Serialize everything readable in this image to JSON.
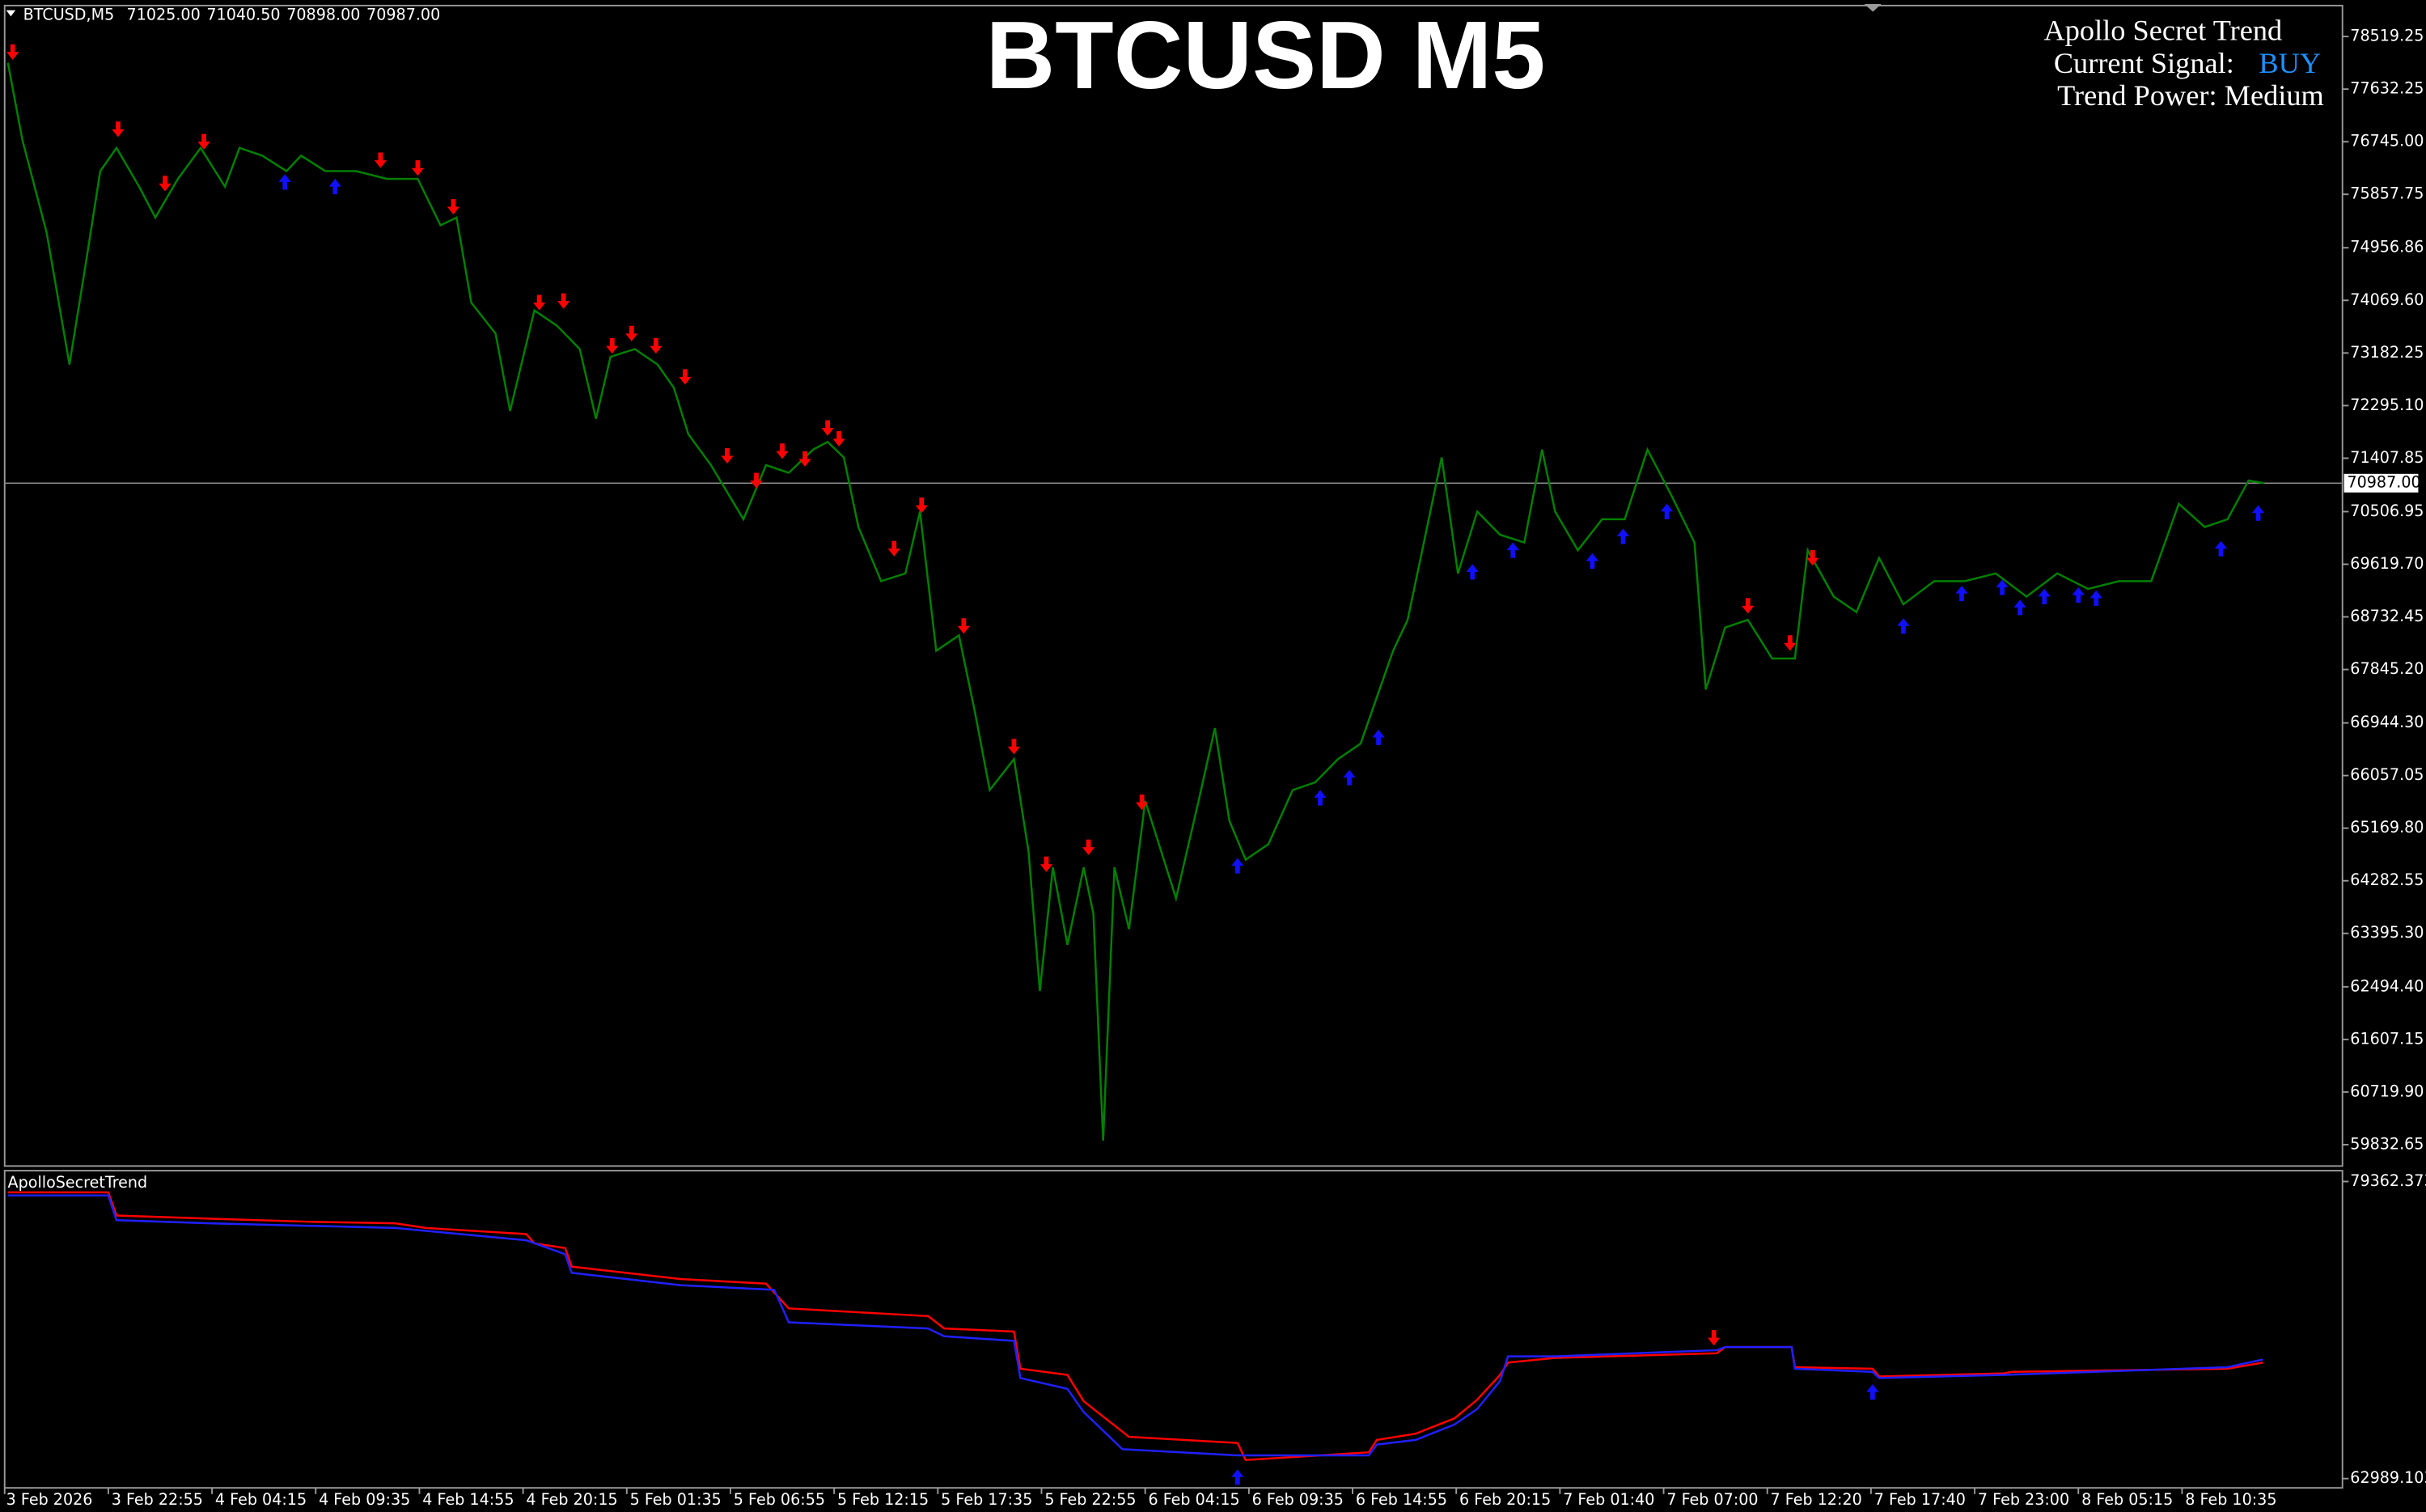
{
  "header": {
    "symbol": "BTCUSD,M5",
    "ohlc": [
      "71025.00",
      "71040.50",
      "70898.00",
      "70987.00"
    ]
  },
  "info": {
    "name": "Apollo Secret Trend",
    "signal_label": "Current Signal:",
    "signal": "BUY",
    "signal_color": "#1e90ff",
    "power": "Trend Power: Medium"
  },
  "chart_data": [
    {
      "type": "line",
      "title": "BTCUSD M5",
      "xlim": [
        0,
        1443
      ],
      "xticks": [
        {
          "value": 0,
          "label": "3 Feb 2026"
        },
        {
          "value": 64,
          "label": "3 Feb 22:55"
        },
        {
          "value": 128,
          "label": "4 Feb 04:15"
        },
        {
          "value": 192,
          "label": "4 Feb 09:35"
        },
        {
          "value": 256,
          "label": "4 Feb 14:55"
        },
        {
          "value": 320,
          "label": "4 Feb 20:15"
        },
        {
          "value": 384,
          "label": "5 Feb 01:35"
        },
        {
          "value": 448,
          "label": "5 Feb 06:55"
        },
        {
          "value": 512,
          "label": "5 Feb 12:15"
        },
        {
          "value": 576,
          "label": "5 Feb 17:35"
        },
        {
          "value": 640,
          "label": "5 Feb 22:55"
        },
        {
          "value": 704,
          "label": "6 Feb 04:15"
        },
        {
          "value": 768,
          "label": "6 Feb 09:35"
        },
        {
          "value": 832,
          "label": "6 Feb 14:55"
        },
        {
          "value": 896,
          "label": "6 Feb 20:15"
        },
        {
          "value": 960,
          "label": "7 Feb 01:40"
        },
        {
          "value": 1024,
          "label": "7 Feb 07:00"
        },
        {
          "value": 1088,
          "label": "7 Feb 12:20"
        },
        {
          "value": 1152,
          "label": "7 Feb 17:40"
        },
        {
          "value": 1216,
          "label": "7 Feb 23:00"
        },
        {
          "value": 1280,
          "label": "8 Feb 05:15"
        },
        {
          "value": 1344,
          "label": "8 Feb 10:35"
        }
      ],
      "ylim": [
        59472,
        79041
      ],
      "yticks": [
        78519.25,
        77632.25,
        {
          "value": 76745,
          "label": "76745.00"
        },
        75857.75,
        74956.86,
        {
          "value": 74069.6,
          "label": "74069.60"
        },
        73182.25,
        {
          "value": 72295.1,
          "label": "72295.10"
        },
        71407.85,
        70506.95,
        {
          "value": 69619.7,
          "label": "69619.70"
        },
        68732.45,
        {
          "value": 67845.2,
          "label": "67845.20"
        },
        {
          "value": 66944.3,
          "label": "66944.30"
        },
        66057.05,
        {
          "value": 65169.8,
          "label": "65169.80"
        },
        64282.55,
        {
          "value": 63395.3,
          "label": "63395.30"
        },
        {
          "value": 62494.4,
          "label": "62494.40"
        },
        61607.15,
        {
          "value": 60719.9,
          "label": "60719.90"
        },
        59832.65
      ],
      "current_price": {
        "value": 70987,
        "label": "70987.00"
      },
      "series": [
        {
          "color": "#008000",
          "x": [
            2,
            11,
            26,
            40,
            50,
            59,
            69,
            83,
            93,
            107,
            121,
            136,
            145,
            159,
            174,
            183,
            198,
            217,
            236,
            255,
            269,
            279,
            288,
            303,
            312,
            327,
            341,
            355,
            365,
            374,
            389,
            403,
            413,
            422,
            436,
            456,
            470,
            484,
            499,
            508,
            518,
            527,
            541,
            556,
            565,
            575,
            589,
            599,
            608,
            623,
            632,
            639,
            647,
            656,
            666,
            672,
            678,
            685,
            694,
            704,
            723,
            737,
            747,
            756,
            766,
            780,
            795,
            809,
            823,
            837,
            847,
            857,
            866,
            876,
            887,
            897,
            909,
            923,
            938,
            949,
            957,
            971,
            986,
            1000,
            1014,
            1029,
            1043,
            1050,
            1062,
            1076,
            1091,
            1105,
            1113,
            1129,
            1143,
            1157,
            1172,
            1191,
            1210,
            1229,
            1248,
            1267,
            1286,
            1305,
            1325,
            1342,
            1358,
            1372,
            1385,
            1395
          ],
          "values": [
            78076,
            76771,
            75206,
            72988,
            74684,
            76249,
            76641,
            75988,
            75467,
            76119,
            76641,
            75988,
            76641,
            76510,
            76249,
            76510,
            76249,
            76249,
            76119,
            76119,
            75336,
            75467,
            74032,
            73510,
            72205,
            73901,
            73640,
            73249,
            72075,
            73119,
            73249,
            72988,
            72597,
            71814,
            71292,
            70379,
            71292,
            71162,
            71553,
            71684,
            71423,
            70249,
            69336,
            69466,
            70510,
            68161,
            68422,
            67118,
            65813,
            66335,
            64770,
            62422,
            64509,
            63204,
            64509,
            63726,
            59900,
            64509,
            63466,
            65631,
            63985,
            65631,
            66857,
            65292,
            64639,
            64900,
            65813,
            65944,
            66335,
            66596,
            67379,
            68161,
            68683,
            69988,
            71423,
            69466,
            70510,
            70118,
            69988,
            71553,
            70510,
            69857,
            70379,
            70379,
            71553,
            70770,
            69988,
            67509,
            68551,
            68683,
            68031,
            68031,
            69857,
            69075,
            68814,
            69727,
            68944,
            69336,
            69336,
            69466,
            69075,
            69466,
            69205,
            69336,
            69336,
            70640,
            70249,
            70379,
            71032,
            70987
          ]
        }
      ],
      "signals": {
        "sell": {
          "color": "#ff0000",
          "x": [
            5,
            70,
            99,
            123,
            232,
            255,
            277,
            330,
            345,
            375,
            387,
            402,
            420,
            446,
            464,
            480,
            494,
            508,
            515,
            549,
            566,
            592,
            623,
            643,
            669,
            702,
            1076,
            1102,
            1116
          ],
          "values": [
            78206,
            76902,
            75988,
            76693,
            76380,
            76249,
            75597,
            73980,
            74006,
            73249,
            73458,
            73249,
            72727,
            71397,
            70979,
            71475,
            71344,
            71866,
            71684,
            69831,
            70562,
            68527,
            66492,
            64509,
            64796,
            65553,
            68866,
            68240,
            69675
          ]
        },
        "buy": {
          "color": "#1010ff",
          "x": [
            173,
            204,
            761,
            812,
            830,
            848,
            906,
            931,
            980,
            999,
            1026,
            1172,
            1208,
            1233,
            1244,
            1259,
            1280,
            1291,
            1368,
            1391
          ],
          "values": [
            76119,
            76041,
            64587,
            65735,
            66074,
            66753,
            69544,
            69909,
            69727,
            70144,
            70562,
            68631,
            69179,
            69283,
            68944,
            69127,
            69153,
            69101,
            69935,
            70536
          ]
        }
      }
    },
    {
      "type": "line",
      "title": "ApolloSecretTrend",
      "xlim": [
        0,
        1443
      ],
      "ylim": [
        62989.1032,
        79362.3739
      ],
      "yticks": [
        79362.3739,
        62989.1032
      ],
      "series": [
        {
          "color": "#ff0000",
          "x": [
            2,
            64,
            69,
            126,
            188,
            241,
            260,
            322,
            327,
            346,
            350,
            417,
            470,
            484,
            570,
            580,
            623,
            627,
            656,
            666,
            694,
            761,
            766,
            842,
            847,
            871,
            895,
            909,
            923,
            928,
            957,
            1057,
            1062,
            1103,
            1105,
            1153,
            1157,
            1234,
            1239,
            1372,
            1394
          ],
          "values": [
            78765,
            78765,
            77486,
            77315,
            77145,
            77059,
            76804,
            76462,
            75951,
            75695,
            74672,
            73989,
            73734,
            72369,
            71943,
            71260,
            71090,
            69043,
            68702,
            67252,
            65291,
            64950,
            64012,
            64438,
            65120,
            65461,
            66314,
            67338,
            68702,
            69384,
            69640,
            69896,
            70237,
            70237,
            69128,
            69043,
            68617,
            68787,
            68873,
            69043,
            69384
          ]
        },
        {
          "color": "#2020ff",
          "x": [
            2,
            64,
            69,
            126,
            241,
            322,
            346,
            350,
            417,
            475,
            484,
            570,
            580,
            623,
            627,
            656,
            666,
            690,
            761,
            842,
            847,
            871,
            895,
            909,
            923,
            928,
            957,
            1057,
            1062,
            1103,
            1105,
            1153,
            1157,
            1234,
            1372,
            1394
          ],
          "values": [
            78595,
            78595,
            77230,
            77059,
            76804,
            76121,
            75354,
            74330,
            73648,
            73392,
            71602,
            71260,
            70834,
            70578,
            68531,
            67934,
            66655,
            64609,
            64267,
            64267,
            64864,
            65120,
            65973,
            66826,
            68361,
            69725,
            69725,
            70066,
            70237,
            70237,
            69043,
            68873,
            68531,
            68702,
            69128,
            69555
          ]
        }
      ],
      "signals": {
        "sell": {
          "color": "#ff0000",
          "x": [
            1055
          ],
          "values": [
            70578
          ]
        },
        "buy": {
          "color": "#1010ff",
          "x": [
            761,
            1153
          ],
          "values": [
            63244,
            67934
          ]
        }
      }
    }
  ]
}
